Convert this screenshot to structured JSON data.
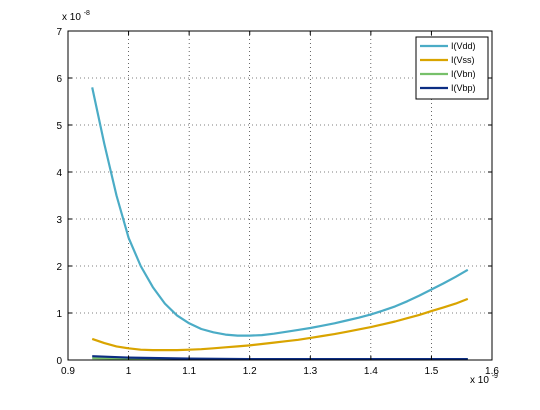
{
  "chart_data": {
    "type": "line",
    "x_exponent_label": "x 10",
    "x_exponent_power": "-9",
    "y_exponent_label": "x 10",
    "y_exponent_power": "-8",
    "xlim": [
      0.9,
      1.6
    ],
    "ylim": [
      0,
      7
    ],
    "x_ticks": [
      0.9,
      1.0,
      1.1,
      1.2,
      1.3,
      1.4,
      1.5,
      1.6
    ],
    "x_tick_labels": [
      "0.9",
      "1",
      "1.1",
      "1.2",
      "1.3",
      "1.4",
      "1.5",
      "1.6"
    ],
    "y_ticks": [
      0,
      1,
      2,
      3,
      4,
      5,
      6,
      7
    ],
    "y_tick_labels": [
      "0",
      "1",
      "2",
      "3",
      "4",
      "5",
      "6",
      "7"
    ],
    "grid": true,
    "legend_position": "top-right",
    "series": [
      {
        "name": "I(Vdd)",
        "color": "#4bacc6",
        "x": [
          0.94,
          0.96,
          0.98,
          1.0,
          1.02,
          1.04,
          1.06,
          1.08,
          1.1,
          1.12,
          1.14,
          1.16,
          1.18,
          1.2,
          1.22,
          1.24,
          1.26,
          1.28,
          1.3,
          1.32,
          1.34,
          1.36,
          1.38,
          1.4,
          1.42,
          1.44,
          1.46,
          1.48,
          1.5,
          1.52,
          1.54,
          1.56
        ],
        "values": [
          5.8,
          4.6,
          3.5,
          2.6,
          2.0,
          1.55,
          1.2,
          0.95,
          0.78,
          0.66,
          0.59,
          0.54,
          0.52,
          0.52,
          0.53,
          0.56,
          0.6,
          0.64,
          0.68,
          0.73,
          0.78,
          0.84,
          0.9,
          0.97,
          1.05,
          1.14,
          1.25,
          1.37,
          1.5,
          1.63,
          1.77,
          1.92
        ]
      },
      {
        "name": "I(Vss)",
        "color": "#d9a400",
        "x": [
          0.94,
          0.96,
          0.98,
          1.0,
          1.02,
          1.04,
          1.06,
          1.08,
          1.1,
          1.12,
          1.14,
          1.16,
          1.18,
          1.2,
          1.22,
          1.24,
          1.26,
          1.28,
          1.3,
          1.32,
          1.34,
          1.36,
          1.38,
          1.4,
          1.42,
          1.44,
          1.46,
          1.48,
          1.5,
          1.52,
          1.54,
          1.56
        ],
        "values": [
          0.45,
          0.36,
          0.29,
          0.25,
          0.22,
          0.21,
          0.21,
          0.21,
          0.22,
          0.23,
          0.25,
          0.27,
          0.29,
          0.31,
          0.34,
          0.37,
          0.4,
          0.43,
          0.47,
          0.51,
          0.55,
          0.6,
          0.65,
          0.7,
          0.76,
          0.82,
          0.89,
          0.96,
          1.04,
          1.12,
          1.2,
          1.3
        ]
      },
      {
        "name": "I(Vbn)",
        "color": "#77c06a",
        "x": [
          0.94,
          1.0,
          1.1,
          1.2,
          1.3,
          1.4,
          1.5,
          1.56
        ],
        "values": [
          0.04,
          0.03,
          0.02,
          0.02,
          0.02,
          0.02,
          0.02,
          0.02
        ]
      },
      {
        "name": "I(Vbp)",
        "color": "#0c2d83",
        "x": [
          0.94,
          1.0,
          1.1,
          1.2,
          1.3,
          1.4,
          1.5,
          1.56
        ],
        "values": [
          0.08,
          0.05,
          0.03,
          0.02,
          0.02,
          0.02,
          0.02,
          0.02
        ]
      }
    ]
  }
}
